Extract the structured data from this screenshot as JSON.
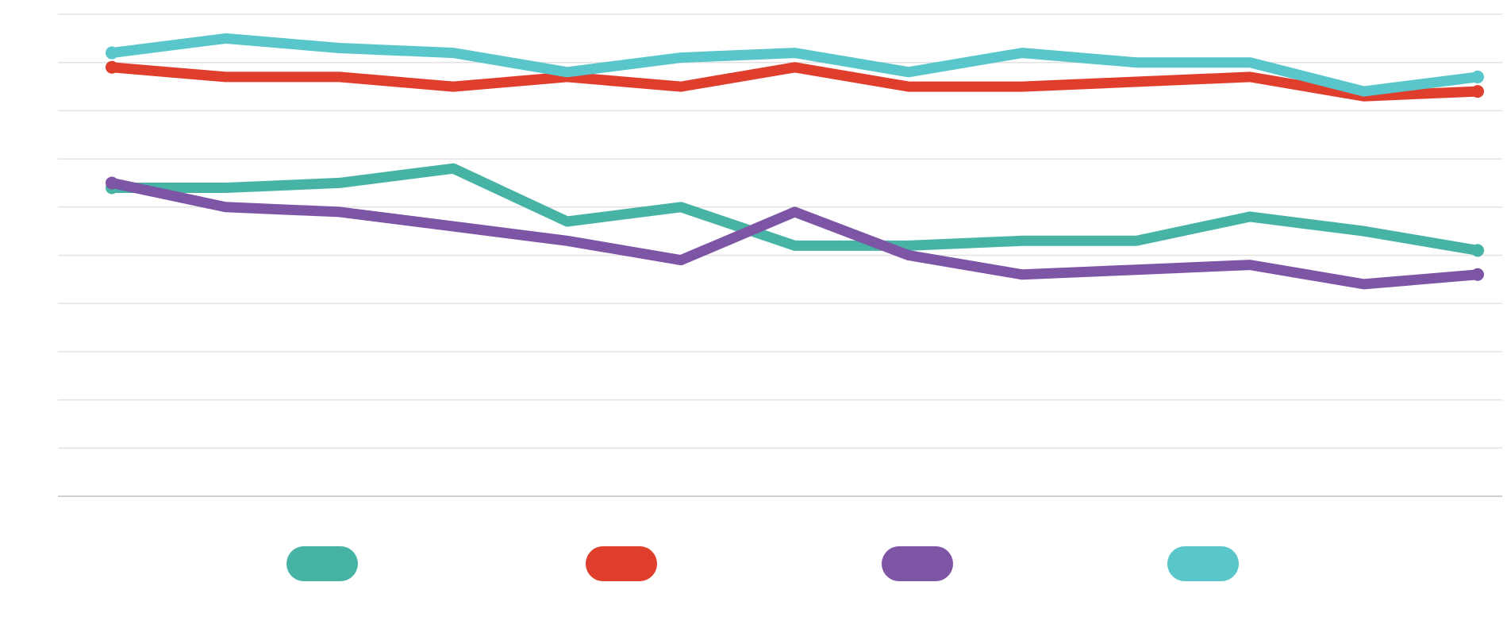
{
  "chart_data": {
    "type": "line",
    "title": "",
    "xlabel": "",
    "ylabel": "",
    "x": [
      1,
      2,
      3,
      4,
      5,
      6,
      7,
      8,
      9,
      10,
      11,
      12,
      13
    ],
    "ylim": [
      0,
      10
    ],
    "grid": true,
    "legend_position": "bottom",
    "series": [
      {
        "color": "#47b3a5",
        "values": [
          6.4,
          6.4,
          6.5,
          6.8,
          5.7,
          6.0,
          5.2,
          5.2,
          5.3,
          5.3,
          5.8,
          5.5,
          5.1
        ]
      },
      {
        "color": "#e03e2d",
        "values": [
          8.9,
          8.7,
          8.7,
          8.5,
          8.7,
          8.5,
          8.9,
          8.5,
          8.5,
          8.6,
          8.7,
          8.3,
          8.4
        ]
      },
      {
        "color": "#7d55a5",
        "values": [
          6.5,
          6.0,
          5.9,
          5.6,
          5.3,
          4.9,
          5.9,
          5.0,
          4.6,
          4.7,
          4.8,
          4.4,
          4.6
        ]
      },
      {
        "color": "#58c6cb",
        "values": [
          9.2,
          9.5,
          9.3,
          9.2,
          8.8,
          9.1,
          9.2,
          8.8,
          9.2,
          9.0,
          9.0,
          8.4,
          8.7
        ]
      }
    ]
  }
}
